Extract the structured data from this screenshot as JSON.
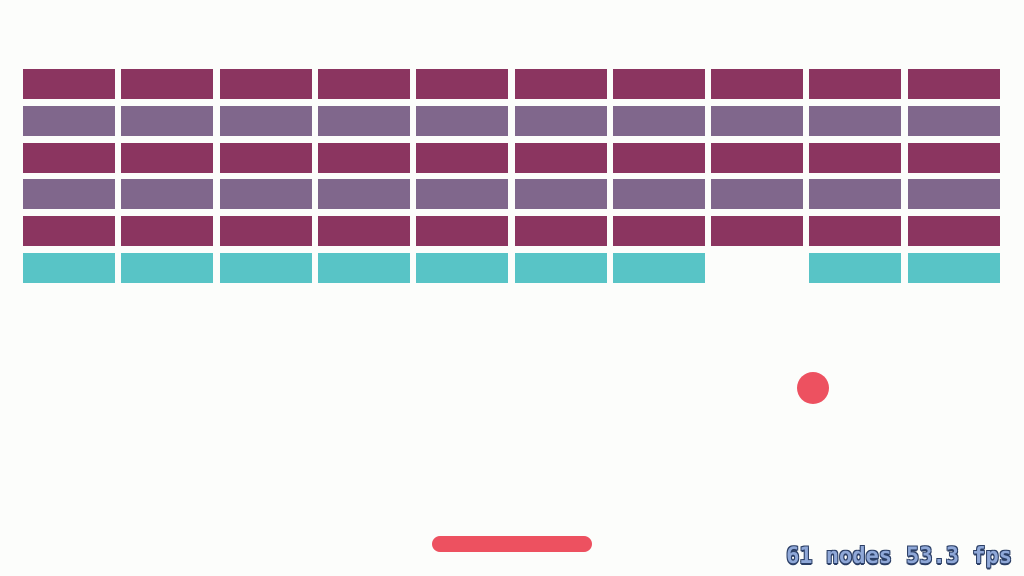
{
  "colors": {
    "background": "#fcfdfb",
    "brick_dark": "#8b3560",
    "brick_light": "#80678c",
    "brick_cyan": "#58c4c6",
    "paddle": "#ed5160",
    "ball": "#ed5160",
    "stats_text": "#8fa8d8"
  },
  "grid": {
    "rows": [
      {
        "color": "brick_dark",
        "bricks": [
          1,
          1,
          1,
          1,
          1,
          1,
          1,
          1,
          1,
          1
        ]
      },
      {
        "color": "brick_light",
        "bricks": [
          1,
          1,
          1,
          1,
          1,
          1,
          1,
          1,
          1,
          1
        ]
      },
      {
        "color": "brick_dark",
        "bricks": [
          1,
          1,
          1,
          1,
          1,
          1,
          1,
          1,
          1,
          1
        ]
      },
      {
        "color": "brick_light",
        "bricks": [
          1,
          1,
          1,
          1,
          1,
          1,
          1,
          1,
          1,
          1
        ]
      },
      {
        "color": "brick_dark",
        "bricks": [
          1,
          1,
          1,
          1,
          1,
          1,
          1,
          1,
          1,
          1
        ]
      },
      {
        "color": "brick_cyan",
        "bricks": [
          1,
          1,
          1,
          1,
          1,
          1,
          1,
          0,
          1,
          1
        ]
      }
    ]
  },
  "stats": {
    "nodes": "61 nodes",
    "fps": "53.3 fps"
  }
}
